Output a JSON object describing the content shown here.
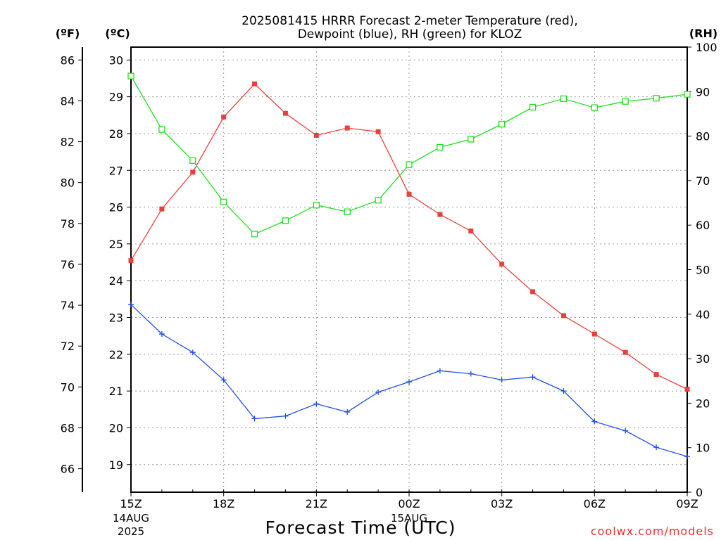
{
  "chart_data": {
    "type": "line",
    "title_lines": [
      "2025081415 HRRR Forecast 2-meter Temperature (red),",
      "Dewpoint (blue), RH (green) for KLOZ"
    ],
    "xlabel": "Forecast Time (UTC)",
    "credit": "coolwx.com/models",
    "units": {
      "fahrenheit": "(ºF)",
      "celsius": "(ºC)",
      "rh": "(RH)"
    },
    "x_ticks": [
      {
        "label": "15Z",
        "date_lines": [
          "14AUG",
          "2025"
        ]
      },
      {
        "label": "18Z",
        "date_lines": []
      },
      {
        "label": "21Z",
        "date_lines": []
      },
      {
        "label": "00Z",
        "date_lines": [
          "15AUG"
        ]
      },
      {
        "label": "03Z",
        "date_lines": []
      },
      {
        "label": "06Z",
        "date_lines": []
      },
      {
        "label": "09Z",
        "date_lines": []
      }
    ],
    "x_hours": [
      0,
      1,
      2,
      3,
      4,
      5,
      6,
      7,
      8,
      9,
      10,
      11,
      12,
      13,
      14,
      15,
      16,
      17,
      18
    ],
    "celsius_axis": {
      "min": 18.25,
      "max": 30.35,
      "ticks": [
        19,
        20,
        21,
        22,
        23,
        24,
        25,
        26,
        27,
        28,
        29,
        30
      ]
    },
    "fahrenheit_ticks": [
      66,
      68,
      70,
      72,
      74,
      76,
      78,
      80,
      82,
      84,
      86
    ],
    "rh_axis": {
      "min": 0,
      "max": 100,
      "ticks": [
        0,
        10,
        20,
        30,
        40,
        50,
        60,
        70,
        80,
        90,
        100
      ]
    },
    "grid": true,
    "series": [
      {
        "axis": "celsius",
        "color": "#e8403c",
        "marker": "filled-square",
        "values": [
          24.55,
          25.95,
          26.95,
          28.45,
          29.35,
          28.55,
          27.95,
          28.15,
          28.05,
          26.35,
          25.8,
          25.35,
          24.45,
          23.7,
          23.05,
          22.55,
          22.05,
          21.45,
          21.05
        ]
      },
      {
        "axis": "celsius",
        "color": "#2050e8",
        "marker": "plus",
        "values": [
          23.35,
          22.55,
          22.05,
          21.3,
          20.25,
          20.32,
          20.65,
          20.43,
          20.97,
          21.25,
          21.55,
          21.47,
          21.3,
          21.38,
          21.0,
          20.17,
          19.92,
          19.47,
          19.22
        ]
      },
      {
        "axis": "rh",
        "color": "#22dd22",
        "marker": "open-square",
        "values": [
          93.5,
          81.5,
          74.5,
          65.2,
          58.0,
          61.0,
          64.5,
          63.0,
          65.6,
          73.6,
          77.5,
          79.3,
          82.7,
          86.5,
          88.4,
          86.4,
          87.8,
          88.5,
          89.4
        ]
      }
    ]
  }
}
